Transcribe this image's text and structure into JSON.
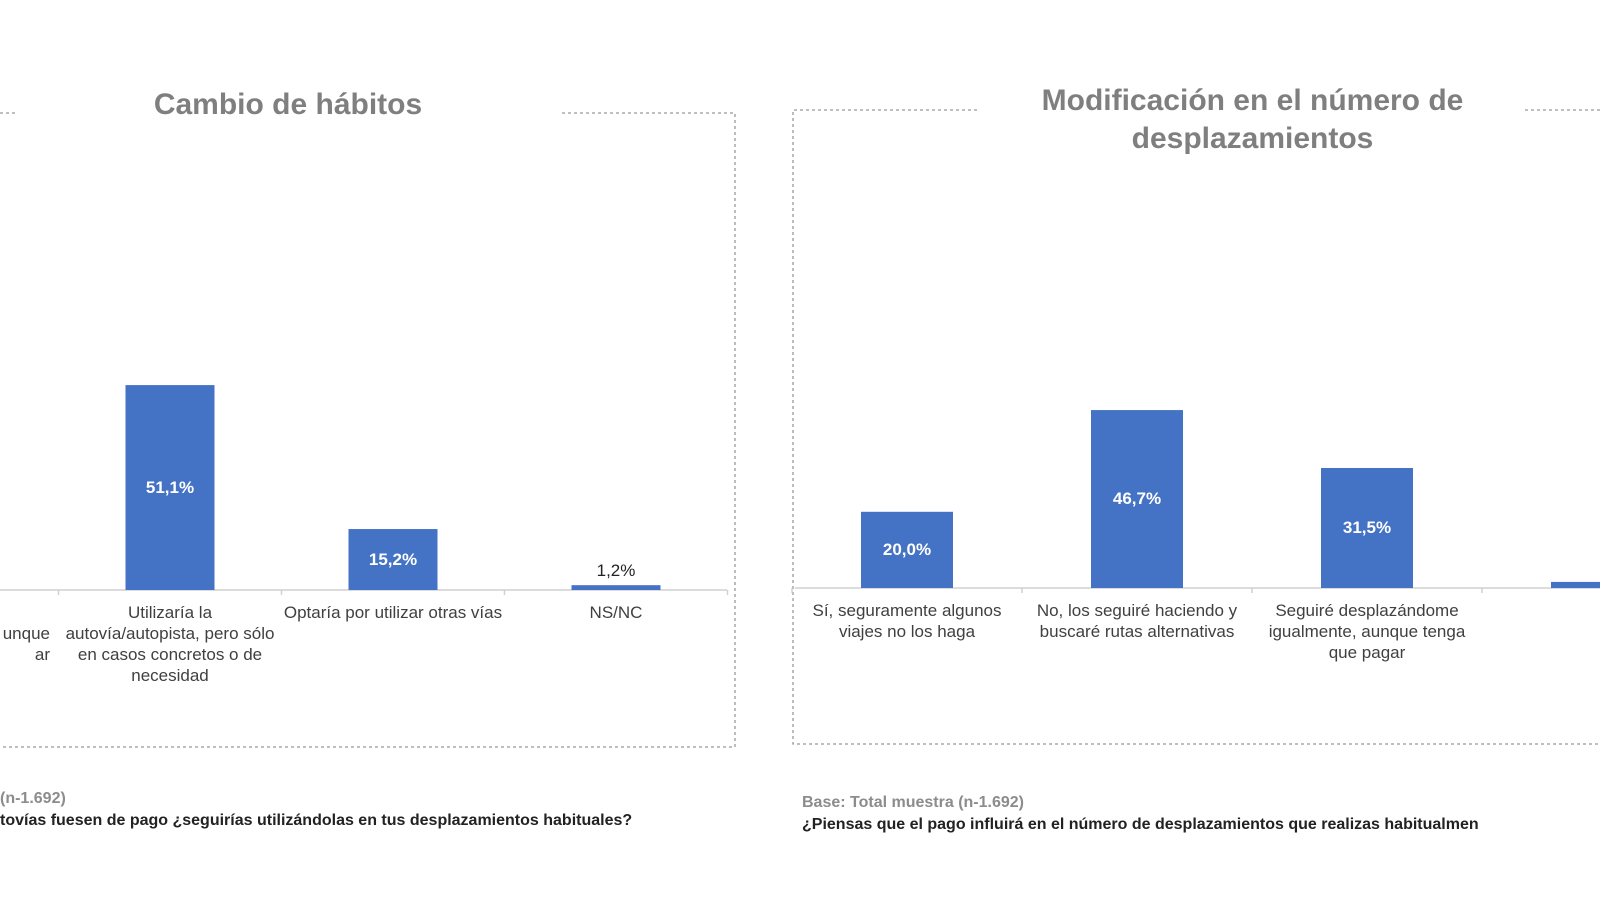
{
  "colors": {
    "bar": "#4472c4",
    "title": "#7f7f7f"
  },
  "chart_data": [
    {
      "type": "bar",
      "title": "Cambio de hábitos",
      "categories": [
        "…unque …ar",
        "Utilizaría la autovía/autopista, pero sólo en casos concretos o de necesidad",
        "Optaría por utilizar otras vías",
        "NS/NC"
      ],
      "values": [
        null,
        51.1,
        15.2,
        1.2
      ],
      "value_labels": [
        "",
        "51,1%",
        "15,2%",
        "1,2%"
      ],
      "partial_label": "unque\nar",
      "base": "(n-1.692)",
      "question": "tovías fuesen de pago ¿seguirías utilizándolas en tus desplazamientos habituales?"
    },
    {
      "type": "bar",
      "title": "Modificación en el número de desplazamientos",
      "categories": [
        "Sí, seguramente algunos viajes no los haga",
        "No, los seguiré haciendo y buscaré rutas alternativas",
        "Seguiré desplazándome igualmente, aunque tenga que pagar",
        ""
      ],
      "values": [
        20.0,
        46.7,
        31.5,
        1.6
      ],
      "value_labels": [
        "20,0%",
        "46,7%",
        "31,5%",
        ""
      ],
      "base": "Base: Total muestra (n-1.692)",
      "question": "¿Piensas que el pago influirá en el número de desplazamientos que realizas habitualmen"
    }
  ]
}
